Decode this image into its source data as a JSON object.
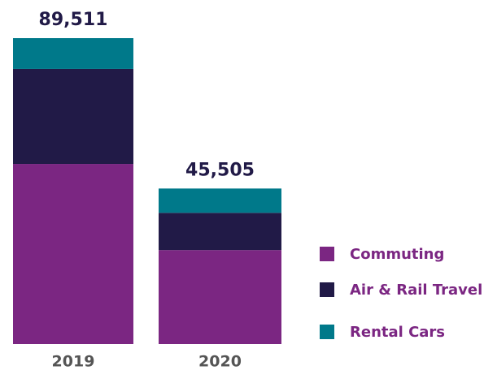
{
  "chart_data": {
    "type": "stacked_bar",
    "categories": [
      "2019",
      "2020"
    ],
    "series": [
      {
        "name": "Commuting",
        "color": "#7b2682",
        "values": [
          52700,
          27500
        ]
      },
      {
        "name": "Air & Rail Travel",
        "color": "#211a47",
        "values": [
          27800,
          10900
        ]
      },
      {
        "name": "Rental Cars",
        "color": "#00798a",
        "values": [
          9011,
          7105
        ]
      }
    ],
    "totals": [
      89511,
      45505
    ],
    "total_labels": [
      "89,511",
      "45,505"
    ],
    "legend": "right"
  }
}
